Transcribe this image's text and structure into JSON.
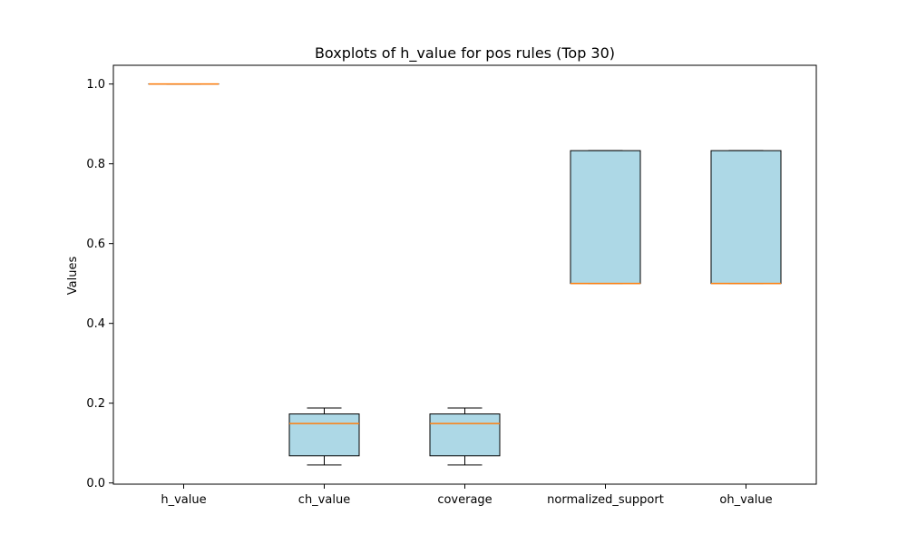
{
  "chart_data": {
    "type": "box",
    "title": "Boxplots of h_value for pos rules (Top 30)",
    "xlabel": "",
    "ylabel": "Values",
    "ylim": [
      -0.003,
      1.047
    ],
    "yticks": [
      0.0,
      0.2,
      0.4,
      0.6,
      0.8,
      1.0
    ],
    "ytick_labels": [
      "0.0",
      "0.2",
      "0.4",
      "0.6",
      "0.8",
      "1.0"
    ],
    "grid": false,
    "categories": [
      "h_value",
      "ch_value",
      "coverage",
      "normalized_support",
      "oh_value"
    ],
    "boxes": [
      {
        "whisker_low": 1.0,
        "q1": 1.0,
        "median": 1.0,
        "q3": 1.0,
        "whisker_high": 1.0
      },
      {
        "whisker_low": 0.045,
        "q1": 0.068,
        "median": 0.149,
        "q3": 0.173,
        "whisker_high": 0.188
      },
      {
        "whisker_low": 0.045,
        "q1": 0.068,
        "median": 0.149,
        "q3": 0.173,
        "whisker_high": 0.188
      },
      {
        "whisker_low": 0.5,
        "q1": 0.5,
        "median": 0.5,
        "q3": 0.833,
        "whisker_high": 0.833
      },
      {
        "whisker_low": 0.5,
        "q1": 0.5,
        "median": 0.5,
        "q3": 0.833,
        "whisker_high": 0.833
      }
    ],
    "colors": {
      "box_fill": "#add8e6",
      "median": "#ff7f0e",
      "edge": "#000000"
    }
  }
}
